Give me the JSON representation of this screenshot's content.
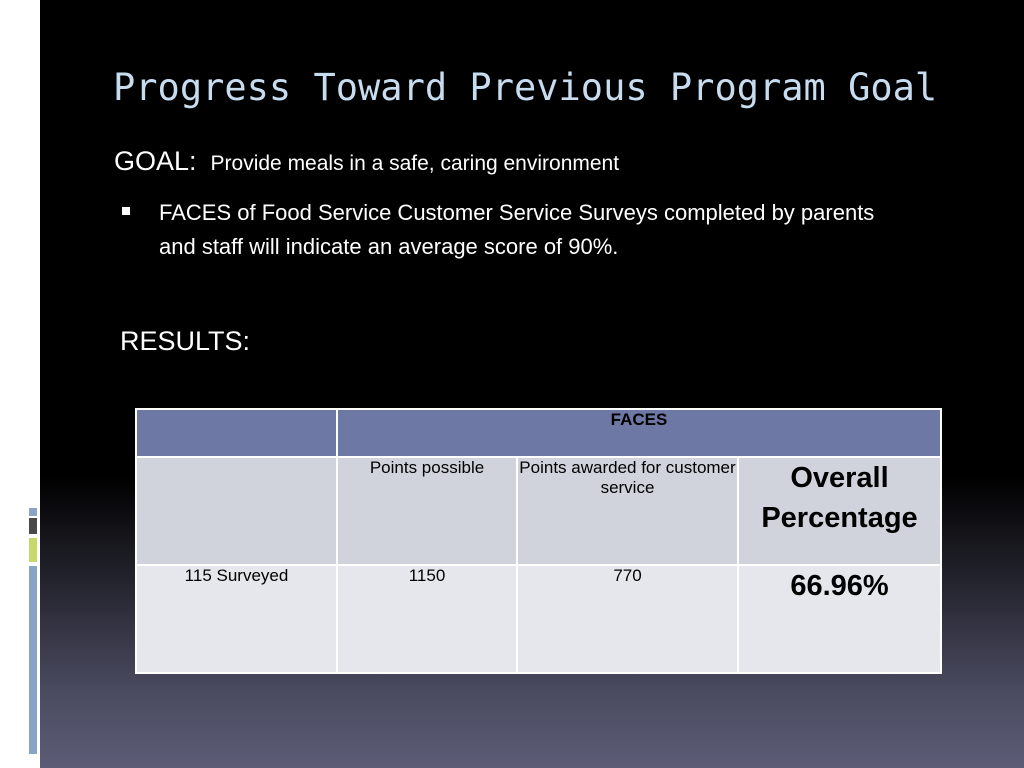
{
  "slide": {
    "title": "Progress Toward Previous Program Goal",
    "goal_label": "GOAL:",
    "goal_text": "Provide meals in a safe, caring environment",
    "bullet": "FACES of Food Service Customer Service Surveys completed by parents and staff will indicate an average score of 90%.",
    "results_label": "RESULTS:"
  },
  "table": {
    "group_header": "FACES",
    "columns": {
      "points_possible": "Points possible",
      "points_awarded": "Points awarded for customer service",
      "overall_percentage": "Overall Percentage"
    },
    "rows": [
      {
        "label": "115 Surveyed",
        "points_possible": "1150",
        "points_awarded": "770",
        "overall_percentage": "66.96%"
      }
    ]
  },
  "colors": {
    "title": "#c8dcf0",
    "table_header": "#6e78a4",
    "table_subheader": "#d0d3dc",
    "table_body": "#e6e7ec"
  }
}
